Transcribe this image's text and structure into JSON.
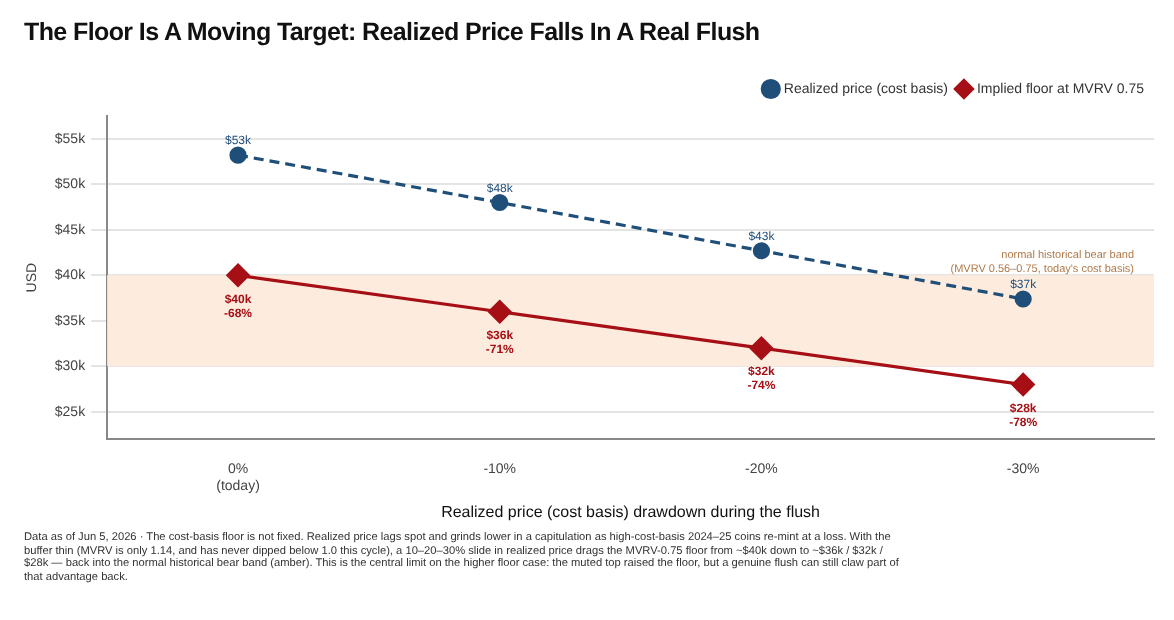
{
  "chart_data": {
    "type": "line",
    "title": "The Floor Is A Moving Target: Realized Price Falls In A Real Flush",
    "xlabel": "Realized price (cost basis) drawdown during the flush",
    "ylabel": "USD",
    "categories": [
      "0%\n(today)",
      "-10%",
      "-20%",
      "-30%"
    ],
    "series": [
      {
        "name": "Realized price (cost basis)",
        "color": "#1f4e79",
        "values": [
          53.2,
          48,
          42.7,
          37.4
        ],
        "marker": "circle",
        "line_style": "dashed",
        "value_labels": [
          "$53k",
          "$48k",
          "$43k",
          "$37k"
        ]
      },
      {
        "name": "Implied floor at MVRV 0.75",
        "color": "#a50f15",
        "values": [
          40,
          36,
          32,
          28
        ],
        "marker": "diamond",
        "line_style": "solid",
        "value_labels": [
          "$40k",
          "$36k",
          "$32k",
          "$28k"
        ]
      }
    ],
    "ylim": [
      22,
      57.5
    ],
    "yticks": [
      {
        "value": 25,
        "label": "$25k"
      },
      {
        "value": 30,
        "label": "$30k"
      },
      {
        "value": 35,
        "label": "$35k"
      },
      {
        "value": 40,
        "label": "$40k"
      },
      {
        "value": 45,
        "label": "$45k"
      },
      {
        "value": 50,
        "label": "$50k"
      },
      {
        "value": 55,
        "label": "$55k"
      }
    ],
    "bands": [
      {
        "axis": "y",
        "from": 30,
        "to": 40,
        "label": "normal historical bear band\n(MVRV 0.56–0.75, today's cost basis)",
        "color": "#fdebdd"
      }
    ],
    "grid": "y",
    "legend": "top right",
    "annotations": [
      {
        "text": "-68%",
        "x": "0%\n(today)",
        "y": 40
      },
      {
        "text": "-71%",
        "x": "-10%",
        "y": 36
      },
      {
        "text": "-74%",
        "x": "-20%",
        "y": 32
      },
      {
        "text": "-78%",
        "x": "-30%",
        "y": 28
      },
      "Data as of Jun 5, 2026 · The cost-basis floor is not fixed. Realized price lags spot and grinds lower in a capitulation as high-cost-basis 2024–25 coins re-mint at a loss. With the buffer thin (MVRV is only 1.14, and has never dipped below 1.0 this cycle), a 10–20–30% slide in realized price drags the MVRV-0.75 floor from ~$40k down to ~$36k / $32k / $28k — back into the normal historical bear band (amber). This is the central limit on the higher floor case: the muted top raised the floor, but a genuine flush can still claw part of that advantage back."
    ]
  }
}
